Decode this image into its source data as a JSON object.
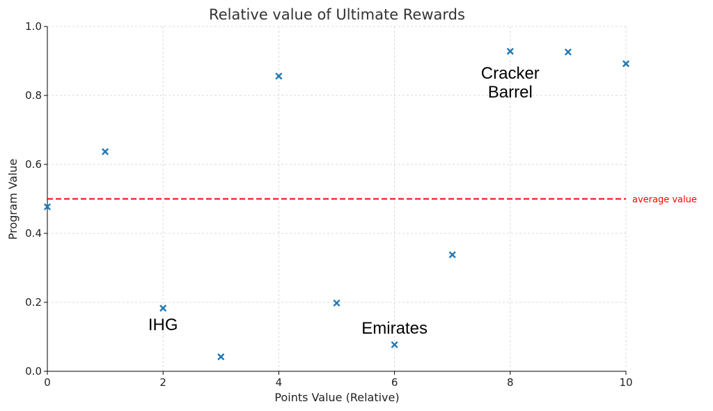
{
  "chart_data": {
    "type": "scatter",
    "title": "Relative value of Ultimate Rewards",
    "xlabel": "Points Value (Relative)",
    "ylabel": "Program Value",
    "xlim": [
      0,
      10
    ],
    "ylim": [
      0,
      1.0
    ],
    "x_ticks": [
      "0",
      "2",
      "4",
      "6",
      "8",
      "10"
    ],
    "y_ticks": [
      "0.0",
      "0.2",
      "0.4",
      "0.6",
      "0.8",
      "1.0"
    ],
    "grid": true,
    "marker": "x",
    "marker_color": "#1f77b4",
    "points": [
      {
        "x": 0,
        "y": 0.477
      },
      {
        "x": 1,
        "y": 0.637
      },
      {
        "x": 2,
        "y": 0.183
      },
      {
        "x": 3,
        "y": 0.042
      },
      {
        "x": 4,
        "y": 0.856
      },
      {
        "x": 5,
        "y": 0.198
      },
      {
        "x": 6,
        "y": 0.077
      },
      {
        "x": 7,
        "y": 0.338
      },
      {
        "x": 8,
        "y": 0.928
      },
      {
        "x": 9,
        "y": 0.926
      },
      {
        "x": 10,
        "y": 0.892
      }
    ],
    "reference_line": {
      "y": 0.5,
      "label": "average value",
      "color": "#ff0000",
      "style": "dashed"
    },
    "annotations": [
      {
        "text": "IHG",
        "x": 2,
        "y": 0.135
      },
      {
        "text": "Emirates",
        "x": 6,
        "y": 0.125
      },
      {
        "text": "Cracker",
        "x": 8,
        "y": 0.865
      },
      {
        "text": "Barrel",
        "x": 8,
        "y": 0.81
      }
    ]
  }
}
